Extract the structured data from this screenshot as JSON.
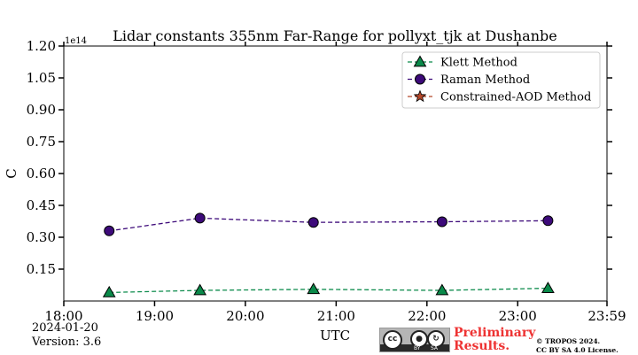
{
  "chart_data": {
    "type": "line",
    "title": "Lidar constants 355nm Far-Range for pollyxt_tjk at Dushanbe",
    "xlabel": "UTC",
    "ylabel": "C",
    "y_multiplier": "1e14",
    "xlim": [
      0,
      359
    ],
    "ylim": [
      0,
      1.2
    ],
    "x_ticks": [
      {
        "value": 0,
        "label": "18:00"
      },
      {
        "value": 60,
        "label": "19:00"
      },
      {
        "value": 120,
        "label": "20:00"
      },
      {
        "value": 180,
        "label": "21:00"
      },
      {
        "value": 240,
        "label": "22:00"
      },
      {
        "value": 300,
        "label": "23:00"
      },
      {
        "value": 359,
        "label": "23:59"
      }
    ],
    "y_ticks": [
      "0.15",
      "0.30",
      "0.45",
      "0.60",
      "0.75",
      "0.90",
      "1.05",
      "1.20"
    ],
    "grid": false,
    "legend_position": "top-right",
    "series": [
      {
        "name": "Klett Method",
        "marker": "triangle",
        "color": "#0a8a4a",
        "x": [
          30,
          90,
          165,
          250,
          320
        ],
        "values": [
          0.04,
          0.05,
          0.055,
          0.05,
          0.06
        ]
      },
      {
        "name": "Raman Method",
        "marker": "circle",
        "color": "#3d0a7a",
        "x": [
          30,
          90,
          165,
          250,
          320
        ],
        "values": [
          0.33,
          0.39,
          0.37,
          0.373,
          0.378
        ]
      },
      {
        "name": "Constrained-AOD Method",
        "marker": "star",
        "color": "#b5482a",
        "x": [],
        "values": []
      }
    ]
  },
  "footer": {
    "date": "2024-01-20",
    "version": "Version: 3.6",
    "preliminary_line1": "Preliminary",
    "preliminary_line2": "Results.",
    "copyright_line1": "© TROPOS 2024.",
    "copyright_line2": "CC BY SA 4.0 License.",
    "cc_label": "cc",
    "by_label": "BY",
    "sa_label": "SA"
  }
}
